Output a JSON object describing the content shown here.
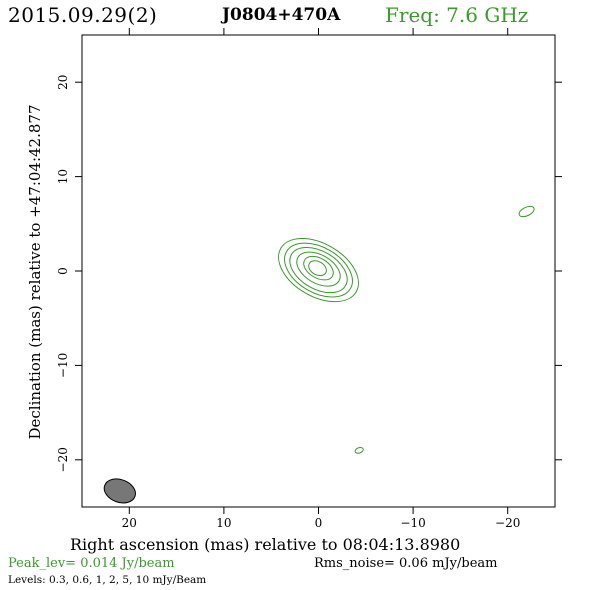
{
  "header": {
    "date": "2015.09.29(2)",
    "source": "J0804+470A",
    "frequency": "Freq: 7.6 GHz"
  },
  "axes": {
    "x_label": "Right ascension (mas) relative to 08:04:13.8980",
    "y_label": "Declination (mas) relative to +47:04:42.877",
    "x_ticks": [
      "20",
      "10",
      "0",
      "−10",
      "−20"
    ],
    "y_ticks": [
      "20",
      "10",
      "0",
      "−10",
      "−20"
    ]
  },
  "footer": {
    "peak": "Peak_lev=  0.014 Jy/beam",
    "rms": "Rms_noise= 0.06 mJy/beam",
    "levels": "Levels: 0.3, 0.6,    1,    2,    5,   10 mJy/Beam"
  },
  "colors": {
    "contour": "#3a9a2c",
    "beam_fill": "#777777",
    "frame": "#000000"
  },
  "chart_data": {
    "type": "contour",
    "x_range": [
      25,
      -25
    ],
    "y_range": [
      -25,
      25
    ],
    "x_ticks": [
      20,
      10,
      0,
      -10,
      -20
    ],
    "y_ticks": [
      20,
      10,
      0,
      -10,
      -20
    ],
    "contour_levels_mJy_per_beam": [
      0.3,
      0.6,
      1,
      2,
      5,
      10
    ],
    "main_component": {
      "ra_mas": 0,
      "dec_mas": 0,
      "contours": [
        {
          "level": 0.3,
          "cx": 0.0,
          "cy": 0.1,
          "rx": 4.6,
          "ry": 2.8,
          "angle": 30
        },
        {
          "level": 0.6,
          "cx": 0.0,
          "cy": 0.1,
          "rx": 3.9,
          "ry": 2.4,
          "angle": 30
        },
        {
          "level": 1,
          "cx": 0.0,
          "cy": 0.1,
          "rx": 3.3,
          "ry": 2.0,
          "angle": 30
        },
        {
          "level": 2,
          "cx": 0.0,
          "cy": 0.2,
          "rx": 2.5,
          "ry": 1.5,
          "angle": 30
        },
        {
          "level": 5,
          "cx": 0.0,
          "cy": 0.3,
          "rx": 1.7,
          "ry": 1.05,
          "angle": 30
        },
        {
          "level": 10,
          "cx": 0.1,
          "cy": 0.3,
          "rx": 1.0,
          "ry": 0.7,
          "angle": 30
        }
      ]
    },
    "noise_features": [
      {
        "cx": -22.0,
        "cy": 6.3,
        "rx": 0.85,
        "ry": 0.45,
        "angle": -25
      },
      {
        "cx": -4.3,
        "cy": -19.0,
        "rx": 0.45,
        "ry": 0.28,
        "angle": -20
      }
    ],
    "beam": {
      "cx": 21.0,
      "cy": -23.3,
      "rx": 1.7,
      "ry": 1.2,
      "angle": 20
    }
  }
}
